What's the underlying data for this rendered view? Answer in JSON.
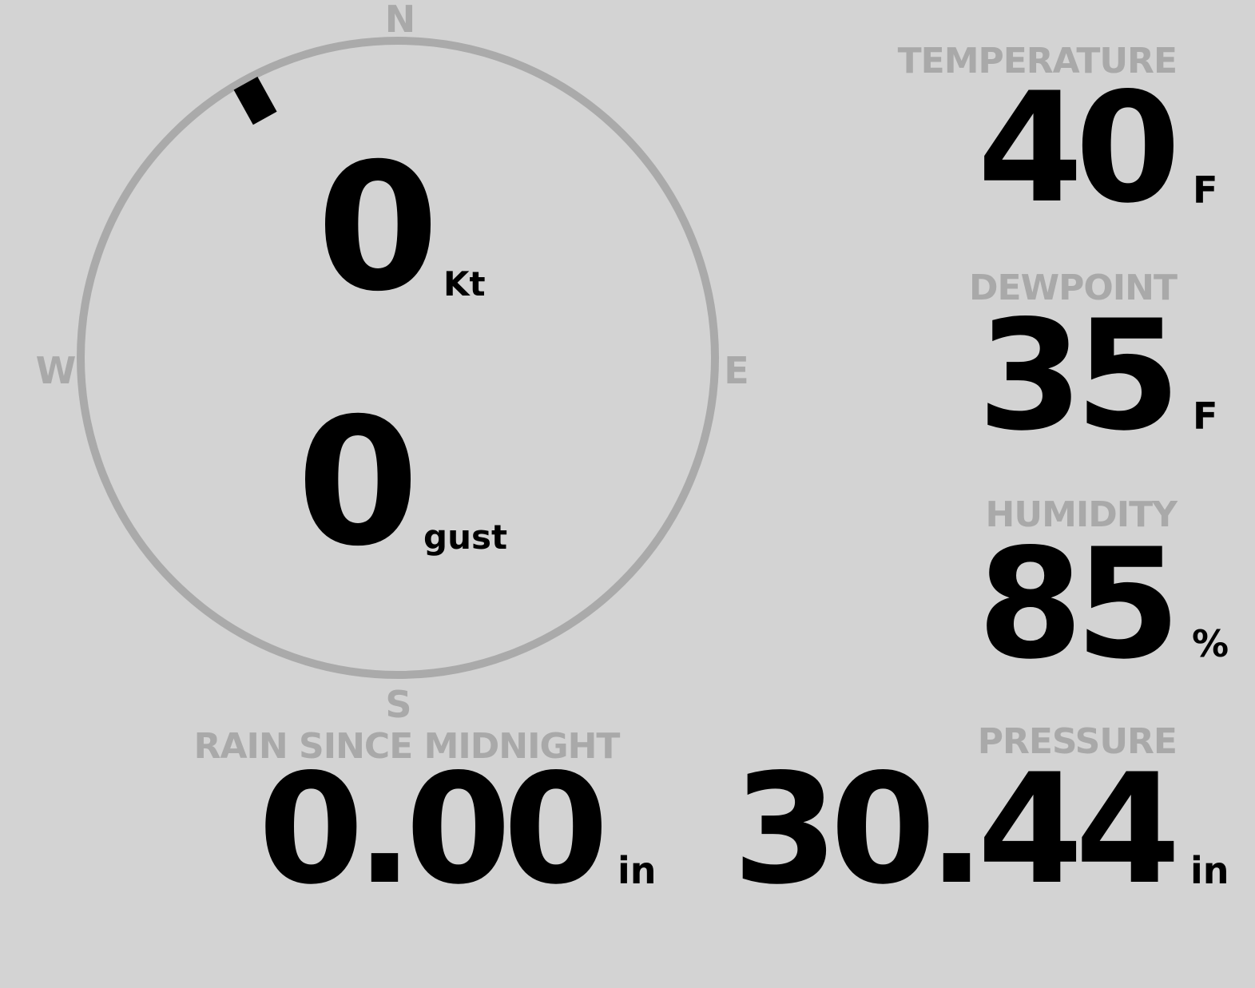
{
  "wind": {
    "cardinals": {
      "n": "N",
      "s": "S",
      "e": "E",
      "w": "W"
    },
    "direction_deg": 331,
    "speed": "0",
    "speed_unit": "Kt",
    "gust": "0",
    "gust_unit": "gust",
    "ring_color": "#aaaaaa",
    "marker_color": "#000000"
  },
  "temperature": {
    "label": "TEMPERATURE",
    "value": "40",
    "unit": "F"
  },
  "dewpoint": {
    "label": "DEWPOINT",
    "value": "35",
    "unit": "F"
  },
  "humidity": {
    "label": "HUMIDITY",
    "value": "85",
    "unit": "%"
  },
  "pressure": {
    "label": "PRESSURE",
    "value": "30.44",
    "unit": "in"
  },
  "rain": {
    "label": "RAIN SINCE MIDNIGHT",
    "value": "0.00",
    "unit": "in"
  },
  "colors": {
    "background": "#d3d3d3",
    "label": "#a9a9a9",
    "value": "#000000"
  }
}
